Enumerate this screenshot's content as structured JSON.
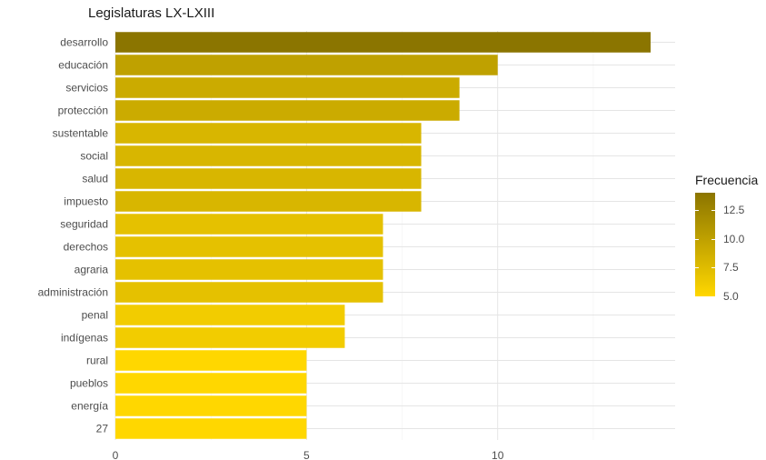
{
  "chart_data": {
    "type": "bar",
    "orientation": "horizontal",
    "title": "Legislaturas LX-LXIII",
    "xlabel": "",
    "ylabel": "",
    "categories": [
      "desarrollo",
      "educación",
      "servicios",
      "protección",
      "sustentable",
      "social",
      "salud",
      "impuesto",
      "seguridad",
      "derechos",
      "agraria",
      "administración",
      "penal",
      "indígenas",
      "rural",
      "pueblos",
      "energía",
      "27"
    ],
    "values": [
      14,
      10,
      9,
      9,
      8,
      8,
      8,
      8,
      7,
      7,
      7,
      7,
      6,
      6,
      5,
      5,
      5,
      5
    ],
    "xlim": [
      0,
      14
    ],
    "xticks": [
      0,
      5,
      10
    ],
    "grid": true,
    "legend": {
      "title": "Frecuencia",
      "placement": "right",
      "ticks": [
        "12.5",
        "10.0",
        "7.5",
        "5.0"
      ],
      "tick_values": [
        12.5,
        10.0,
        7.5,
        5.0
      ],
      "range": [
        5,
        14
      ],
      "color_low": "#FFD700",
      "color_high": "#8B7500"
    }
  }
}
